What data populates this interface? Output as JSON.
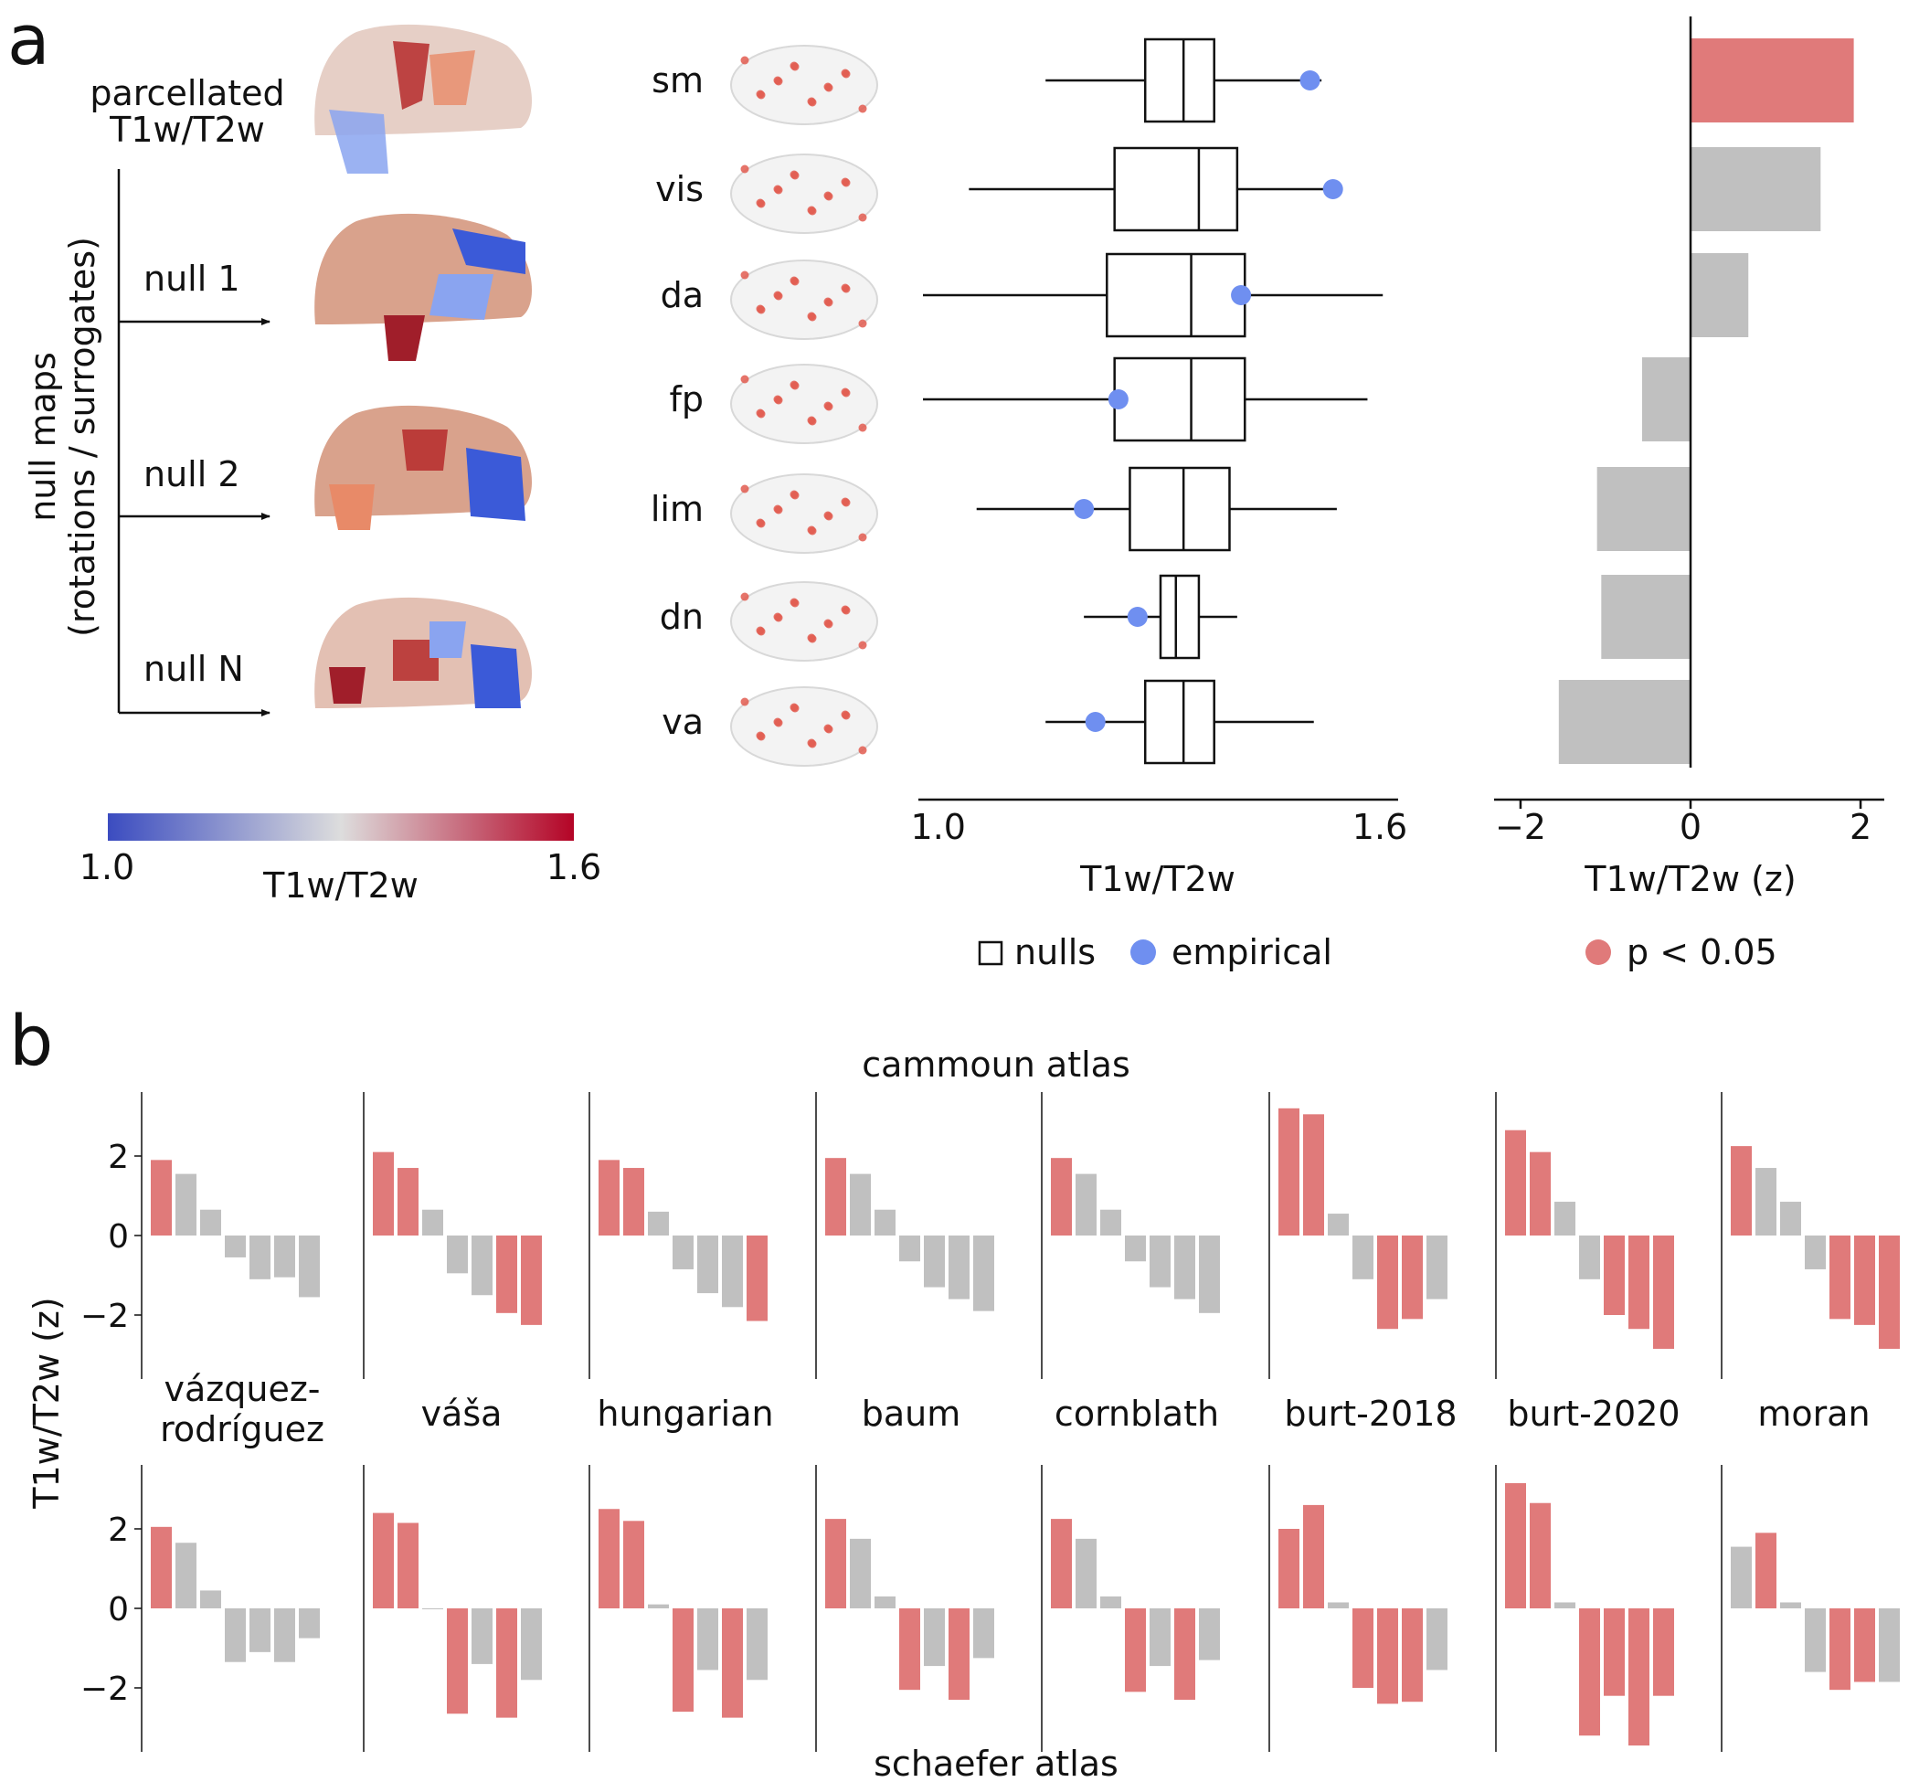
{
  "panels": {
    "a": "a",
    "b": "b"
  },
  "brain_maps": {
    "title_line1": "parcellated",
    "title_line2": "T1w/T2w",
    "side_label_line1": "null maps",
    "side_label_line2": "(rotations / surrogates)",
    "null_labels": [
      "null 1",
      "null 2",
      "null N"
    ]
  },
  "colorbar": {
    "min_label": "1.0",
    "max_label": "1.6",
    "label": "T1w/T2w",
    "colors": [
      "#3b4cc0",
      "#dddddd",
      "#b40426"
    ]
  },
  "colors": {
    "significant": "#e07a7a",
    "nonsignificant": "#c0c0c0",
    "empirical": "#6f8ff0"
  },
  "chart_data": [
    {
      "type": "box",
      "categories": [
        "sm",
        "vis",
        "da",
        "fp",
        "lim",
        "dn",
        "va"
      ],
      "boxes": [
        {
          "whisker_low": 1.14,
          "q1": 1.27,
          "median": 1.32,
          "q3": 1.36,
          "whisker_high": 1.5,
          "empirical": 1.485
        },
        {
          "whisker_low": 1.04,
          "q1": 1.23,
          "median": 1.34,
          "q3": 1.39,
          "whisker_high": 1.52,
          "empirical": 1.515
        },
        {
          "whisker_low": 0.98,
          "q1": 1.22,
          "median": 1.33,
          "q3": 1.4,
          "whisker_high": 1.58,
          "empirical": 1.395
        },
        {
          "whisker_low": 0.98,
          "q1": 1.23,
          "median": 1.33,
          "q3": 1.4,
          "whisker_high": 1.56,
          "empirical": 1.235
        },
        {
          "whisker_low": 1.05,
          "q1": 1.25,
          "median": 1.32,
          "q3": 1.38,
          "whisker_high": 1.52,
          "empirical": 1.19
        },
        {
          "whisker_low": 1.19,
          "q1": 1.29,
          "median": 1.31,
          "q3": 1.34,
          "whisker_high": 1.39,
          "empirical": 1.26
        },
        {
          "whisker_low": 1.14,
          "q1": 1.27,
          "median": 1.32,
          "q3": 1.36,
          "whisker_high": 1.49,
          "empirical": 1.205
        }
      ],
      "xlabel": "T1w/T2w",
      "xlim": [
        0.98,
        1.6
      ],
      "xticks": [
        "1.0",
        "1.6"
      ],
      "legend": [
        "nulls",
        "empirical"
      ]
    },
    {
      "type": "bar",
      "orientation": "horizontal",
      "categories": [
        "sm",
        "vis",
        "da",
        "fp",
        "lim",
        "dn",
        "va"
      ],
      "values": [
        1.92,
        1.53,
        0.68,
        -0.57,
        -1.1,
        -1.05,
        -1.55
      ],
      "significant": [
        true,
        false,
        false,
        false,
        false,
        false,
        false
      ],
      "xlabel": "T1w/T2w (z)",
      "xlim": [
        -2.15,
        2.15
      ],
      "xticks": [
        "−2",
        "0",
        "2"
      ],
      "legend": [
        "p < 0.05"
      ]
    },
    {
      "type": "bar",
      "group": "cammoun atlas",
      "ylabel": "T1w/T2w (z)",
      "ylim": [
        -3.5,
        3.5
      ],
      "yticks": [
        "2",
        "0",
        "−2"
      ],
      "methods": [
        "vázquez-rodríguez",
        "váša",
        "hungarian",
        "baum",
        "cornblath",
        "burt-2018",
        "burt-2020",
        "moran"
      ],
      "method_label_lines": [
        [
          "vázquez-",
          "rodríguez"
        ],
        [
          "váša"
        ],
        [
          "hungarian"
        ],
        [
          "baum"
        ],
        [
          "cornblath"
        ],
        [
          "burt-2018"
        ],
        [
          "burt-2020"
        ],
        [
          "moran"
        ]
      ],
      "categories": [
        "sm",
        "vis",
        "da",
        "fp",
        "lim",
        "dn",
        "va"
      ],
      "values": [
        [
          1.9,
          1.55,
          0.65,
          -0.55,
          -1.1,
          -1.05,
          -1.55
        ],
        [
          2.1,
          1.7,
          0.65,
          -0.95,
          -1.5,
          -1.95,
          -2.25
        ],
        [
          1.9,
          1.7,
          0.6,
          -0.85,
          -1.45,
          -1.8,
          -2.15
        ],
        [
          1.95,
          1.55,
          0.65,
          -0.65,
          -1.3,
          -1.6,
          -1.9
        ],
        [
          1.95,
          1.55,
          0.65,
          -0.65,
          -1.3,
          -1.6,
          -1.95
        ],
        [
          3.2,
          3.05,
          0.55,
          -1.1,
          -2.35,
          -2.1,
          -1.6
        ],
        [
          2.65,
          2.1,
          0.85,
          -1.1,
          -2.0,
          -2.35,
          -2.85
        ],
        [
          2.25,
          1.7,
          0.85,
          -0.85,
          -2.1,
          -2.25,
          -2.85
        ]
      ],
      "significant": [
        [
          true,
          false,
          false,
          false,
          false,
          false,
          false
        ],
        [
          true,
          true,
          false,
          false,
          false,
          true,
          true
        ],
        [
          true,
          true,
          false,
          false,
          false,
          false,
          true
        ],
        [
          true,
          false,
          false,
          false,
          false,
          false,
          false
        ],
        [
          true,
          false,
          false,
          false,
          false,
          false,
          false
        ],
        [
          true,
          true,
          false,
          false,
          true,
          true,
          false
        ],
        [
          true,
          true,
          false,
          false,
          true,
          true,
          true
        ],
        [
          true,
          false,
          false,
          false,
          true,
          true,
          true
        ]
      ]
    },
    {
      "type": "bar",
      "group": "schaefer atlas",
      "ylabel": "T1w/T2w (z)",
      "ylim": [
        -3.5,
        3.5
      ],
      "yticks": [
        "2",
        "0",
        "−2"
      ],
      "methods": [
        "vázquez-rodríguez",
        "váša",
        "hungarian",
        "baum",
        "cornblath",
        "burt-2018",
        "burt-2020",
        "moran"
      ],
      "categories": [
        "sm",
        "vis",
        "da",
        "fp",
        "lim",
        "dn",
        "va"
      ],
      "values": [
        [
          2.05,
          1.65,
          0.45,
          -1.35,
          -1.1,
          -1.35,
          -0.75
        ],
        [
          2.4,
          2.15,
          0.0,
          -2.65,
          -1.4,
          -2.75,
          -1.8
        ],
        [
          2.5,
          2.2,
          0.1,
          -2.6,
          -1.55,
          -2.75,
          -1.8
        ],
        [
          2.25,
          1.75,
          0.3,
          -2.05,
          -1.45,
          -2.3,
          -1.25
        ],
        [
          2.25,
          1.75,
          0.3,
          -2.1,
          -1.45,
          -2.3,
          -1.3
        ],
        [
          2.0,
          2.6,
          0.15,
          -2.0,
          -2.4,
          -2.35,
          -1.55
        ],
        [
          3.15,
          2.65,
          0.15,
          -3.2,
          -2.2,
          -3.45,
          -2.2
        ],
        [
          1.55,
          1.9,
          0.15,
          -1.6,
          -2.05,
          -1.85,
          -1.85
        ]
      ],
      "significant": [
        [
          true,
          false,
          false,
          false,
          false,
          false,
          false
        ],
        [
          true,
          true,
          false,
          true,
          false,
          true,
          false
        ],
        [
          true,
          true,
          false,
          true,
          false,
          true,
          false
        ],
        [
          true,
          false,
          false,
          true,
          false,
          true,
          false
        ],
        [
          true,
          false,
          false,
          true,
          false,
          true,
          false
        ],
        [
          true,
          true,
          false,
          true,
          true,
          true,
          false
        ],
        [
          true,
          true,
          false,
          true,
          true,
          true,
          true
        ],
        [
          false,
          true,
          false,
          false,
          true,
          true,
          false
        ]
      ]
    }
  ]
}
